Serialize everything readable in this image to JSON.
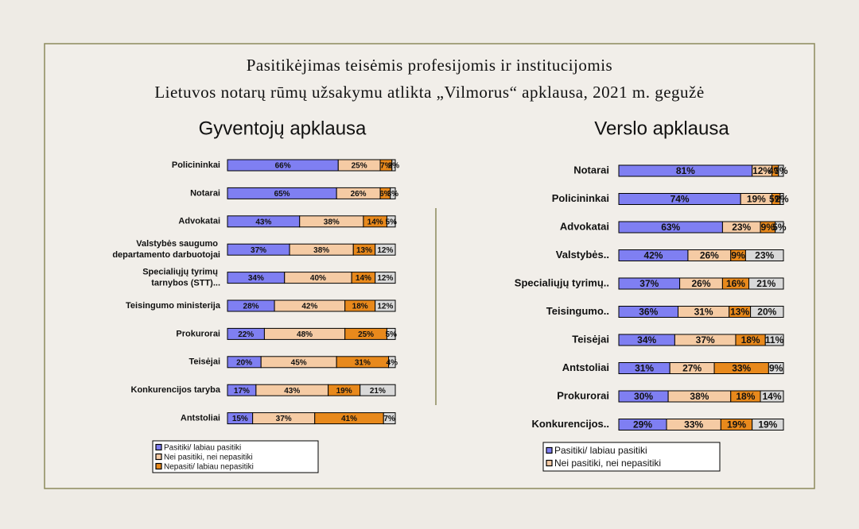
{
  "slide": {
    "title": [
      "Pasitikėjimas teisėmis profesijomis ir institucijomis",
      "Lietuvos notarų rūmų užsakymu atlikta „Vilmorus“ apklausa, 2021 m. gegužė"
    ]
  },
  "chart_data": [
    {
      "type": "bar",
      "orientation": "horizontal",
      "stacked": true,
      "title": "Gyventojų apklausa",
      "legend": "bottom",
      "xlim": [
        0,
        100
      ],
      "categories": [
        "Policininkai",
        "Notarai",
        "Advokatai",
        "Valstybės saugumo departamento darbuotojai",
        "Specialiųjų tyrimų tarnybos (STT)...",
        "Teisingumo ministerija",
        "Prokurorai",
        "Teisėjai",
        "Konkurencijos taryba",
        "Antstoliai"
      ],
      "series": [
        {
          "name": "Pasitiki/ labiau pasitiki",
          "color": "#7f7ff2",
          "values": [
            66,
            65,
            43,
            37,
            34,
            28,
            22,
            20,
            17,
            15
          ],
          "value_labels": [
            "66%",
            "65%",
            "43%",
            "37%",
            "34%",
            "28%",
            "22%",
            "20%",
            "17%",
            "15%"
          ]
        },
        {
          "name": "Nei pasitiki, nei nepasitiki",
          "color": "#f5cba4",
          "values": [
            25,
            26,
            38,
            38,
            40,
            42,
            48,
            45,
            43,
            37
          ],
          "value_labels": [
            "25%",
            "26%",
            "38%",
            "38%",
            "40%",
            "42%",
            "48%",
            "45%",
            "43%",
            "37%"
          ]
        },
        {
          "name": "Nepasiti/ labiau nepasitiki",
          "color": "#e8891c",
          "values": [
            7,
            6,
            14,
            13,
            14,
            18,
            25,
            31,
            19,
            41
          ],
          "value_labels": [
            "7%",
            "6%",
            "14%",
            "13%",
            "14%",
            "18%",
            "25%",
            "31%",
            "19%",
            "41%"
          ]
        },
        {
          "name": null,
          "color": "#d9d9d9",
          "values": [
            2,
            3,
            5,
            12,
            12,
            12,
            5,
            4,
            21,
            7
          ],
          "value_labels": [
            "2%",
            "3%",
            "5%",
            "12%",
            "12%",
            "12%",
            "5%",
            "4%",
            "21%",
            "7%"
          ]
        }
      ]
    },
    {
      "type": "bar",
      "orientation": "horizontal",
      "stacked": true,
      "title": "Verslo apklausa",
      "legend": "bottom",
      "xlim": [
        0,
        100
      ],
      "categories": [
        "Notarai",
        "Policininkai",
        "Advokatai",
        "Valstybės..",
        "Specialiųjų tyrimų..",
        "Teisingumo..",
        "Teisėjai",
        "Antstoliai",
        "Prokurorai",
        "Konkurencijos.."
      ],
      "series": [
        {
          "name": "Pasitiki/ labiau pasitiki",
          "color": "#7f7ff2",
          "values": [
            81,
            74,
            63,
            42,
            37,
            36,
            34,
            31,
            30,
            29
          ],
          "value_labels": [
            "81%",
            "74%",
            "63%",
            "42%",
            "37%",
            "36%",
            "34%",
            "31%",
            "30%",
            "29%"
          ]
        },
        {
          "name": "Nei pasitiki, nei nepasitiki",
          "color": "#f5cba4",
          "values": [
            12,
            19,
            23,
            26,
            26,
            31,
            37,
            27,
            38,
            33
          ],
          "value_labels": [
            "12%",
            "19%",
            "23%",
            "26%",
            "26%",
            "31%",
            "37%",
            "27%",
            "38%",
            "33%"
          ]
        },
        {
          "name": null,
          "color": "#e8891c",
          "values": [
            4,
            5,
            9,
            9,
            16,
            13,
            18,
            33,
            18,
            19
          ],
          "value_labels": [
            "4%",
            "5%",
            "9%",
            "9%",
            "16%",
            "13%",
            "18%",
            "33%",
            "18%",
            "19%"
          ]
        },
        {
          "name": null,
          "color": "#d9d9d9",
          "values": [
            3,
            2,
            5,
            23,
            21,
            20,
            11,
            9,
            14,
            19
          ],
          "value_labels": [
            "3%",
            "2%",
            "5%",
            "23%",
            "21%",
            "20%",
            "11%",
            "9%",
            "14%",
            "19%"
          ]
        }
      ]
    }
  ]
}
